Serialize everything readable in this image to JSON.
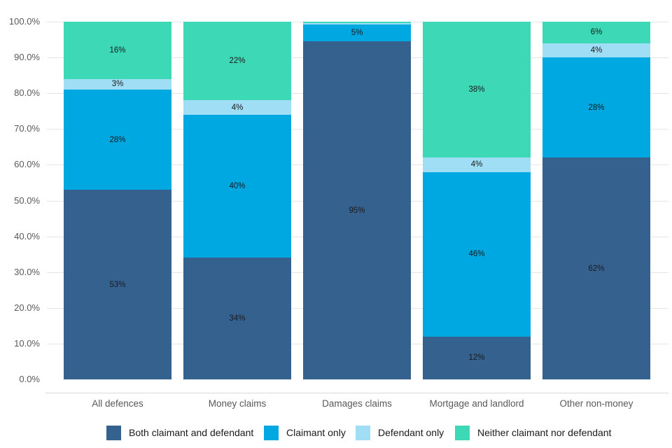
{
  "chart_data": {
    "type": "bar",
    "stacked": true,
    "orientation": "vertical",
    "title": "",
    "xlabel": "",
    "ylabel": "",
    "ylim": [
      0,
      100
    ],
    "grid": true,
    "legend_position": "bottom",
    "categories": [
      "All defences",
      "Money claims",
      "Damages claims",
      "Mortgage and landlord",
      "Other non-money"
    ],
    "series": [
      {
        "name": "Both claimant and defendant",
        "color": "#35618f",
        "values": [
          53,
          34,
          94.5,
          12,
          62
        ],
        "labels": [
          "53%",
          "34%",
          "95%",
          "12%",
          "62%"
        ]
      },
      {
        "name": "Claimant only",
        "color": "#00a8e1",
        "values": [
          28,
          40,
          4.8,
          46,
          28
        ],
        "labels": [
          "28%",
          "40%",
          "5%",
          "46%",
          "28%"
        ]
      },
      {
        "name": "Defendant only",
        "color": "#9fdef5",
        "values": [
          3,
          4,
          0.4,
          4,
          4
        ],
        "labels": [
          "3%",
          "4%",
          "",
          "4%",
          "4%"
        ]
      },
      {
        "name": "Neither claimant nor defendant",
        "color": "#3dd8b6",
        "values": [
          16,
          22,
          0.3,
          38,
          6
        ],
        "labels": [
          "16%",
          "22%",
          "",
          "38%",
          "6%"
        ]
      }
    ],
    "yticks": [
      0,
      10,
      20,
      30,
      40,
      50,
      60,
      70,
      80,
      90,
      100
    ],
    "ytick_labels": [
      "0.0%",
      "10.0%",
      "20.0%",
      "30.0%",
      "40.0%",
      "50.0%",
      "60.0%",
      "70.0%",
      "80.0%",
      "90.0%",
      "100.0%"
    ],
    "label_color": "#1a1a1a",
    "axis_text_color": "#595959",
    "gridline_color": "#e5e5e5",
    "axis_line_color": "#d9d9d9"
  }
}
